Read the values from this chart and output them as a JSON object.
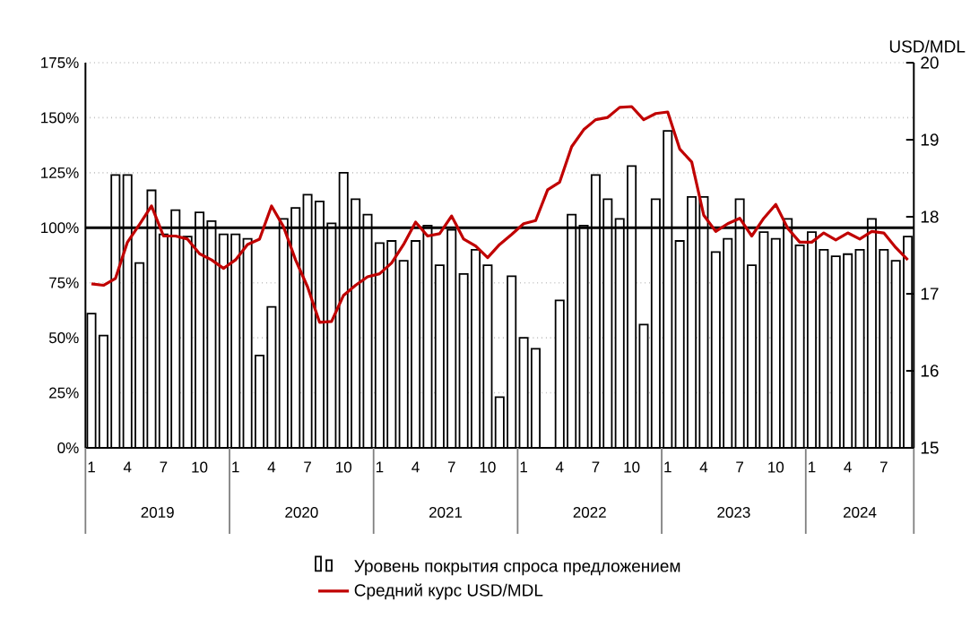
{
  "chart_data": {
    "type": "bar",
    "y2label": "USD/MDL",
    "categories": [
      "1",
      null,
      null,
      "4",
      null,
      null,
      "7",
      null,
      null,
      "10",
      null,
      null,
      "1",
      null,
      null,
      "4",
      null,
      null,
      "7",
      null,
      null,
      "10",
      null,
      null,
      "1",
      null,
      null,
      "4",
      null,
      null,
      "7",
      null,
      null,
      "10",
      null,
      null,
      "1",
      null,
      null,
      "4",
      null,
      null,
      "7",
      null,
      null,
      "10",
      null,
      null,
      "1",
      null,
      null,
      "4",
      null,
      null,
      "7",
      null,
      null,
      "10",
      null,
      null,
      "1",
      null,
      null,
      "4",
      null,
      null,
      "7",
      null,
      null
    ],
    "annotations": [
      "2019",
      "2020",
      "2021",
      "2022",
      "2023",
      "2024"
    ],
    "series": [
      {
        "name": "Уровень покрытия спроса предложением",
        "color": "#ffffff",
        "values": [
          61,
          51,
          124,
          124,
          84,
          117,
          97,
          108,
          96,
          107,
          103,
          97,
          97,
          95,
          42,
          64,
          104,
          109,
          115,
          112,
          102,
          125,
          113,
          106,
          93,
          94,
          85,
          94,
          101,
          83,
          99,
          79,
          90,
          83,
          23,
          78,
          50,
          45,
          null,
          67,
          106,
          101,
          124,
          113,
          104,
          128,
          56,
          113,
          144,
          94,
          114,
          114,
          89,
          95,
          113,
          83,
          98,
          95,
          104,
          92,
          98,
          90,
          87,
          88,
          90,
          104,
          90,
          85,
          96
        ]
      },
      {
        "name": "Средний курс USD/MDL",
        "type": "line",
        "axis": "y2",
        "color": "#c00000",
        "values": [
          17.13,
          17.11,
          17.2,
          17.67,
          17.9,
          18.14,
          17.75,
          17.75,
          17.71,
          17.52,
          17.44,
          17.33,
          17.44,
          17.64,
          17.71,
          18.14,
          17.87,
          17.44,
          17.09,
          16.63,
          16.64,
          16.98,
          17.11,
          17.22,
          17.26,
          17.4,
          17.64,
          17.93,
          17.75,
          17.78,
          18.01,
          17.71,
          17.62,
          17.47,
          17.64,
          17.77,
          17.91,
          17.95,
          18.35,
          18.45,
          18.91,
          19.13,
          19.26,
          19.29,
          19.42,
          19.43,
          19.26,
          19.34,
          19.36,
          18.88,
          18.71,
          18.02,
          17.81,
          17.91,
          17.98,
          17.75,
          17.98,
          18.16,
          17.85,
          17.67,
          17.67,
          17.79,
          17.7,
          17.79,
          17.71,
          17.81,
          17.79,
          17.6,
          17.44
        ]
      }
    ],
    "ylim": [
      0,
      175
    ],
    "yticks": [
      {
        "value": 0,
        "label": "0%"
      },
      {
        "value": 25,
        "label": "25%"
      },
      {
        "value": 50,
        "label": "50%"
      },
      {
        "value": 75,
        "label": "75%"
      },
      {
        "value": 100,
        "label": "100%"
      },
      {
        "value": 125,
        "label": "125%"
      },
      {
        "value": 150,
        "label": "150%"
      },
      {
        "value": 175,
        "label": "175%"
      }
    ],
    "y2lim": [
      15,
      20
    ],
    "y2ticks": [
      15,
      16,
      17,
      18,
      19,
      20
    ],
    "ref_lines": [
      {
        "axis": "y",
        "value": 100,
        "color": "#000000"
      }
    ],
    "grid": "y",
    "legend": "bottom",
    "marker": "none",
    "line_style": "solid"
  }
}
